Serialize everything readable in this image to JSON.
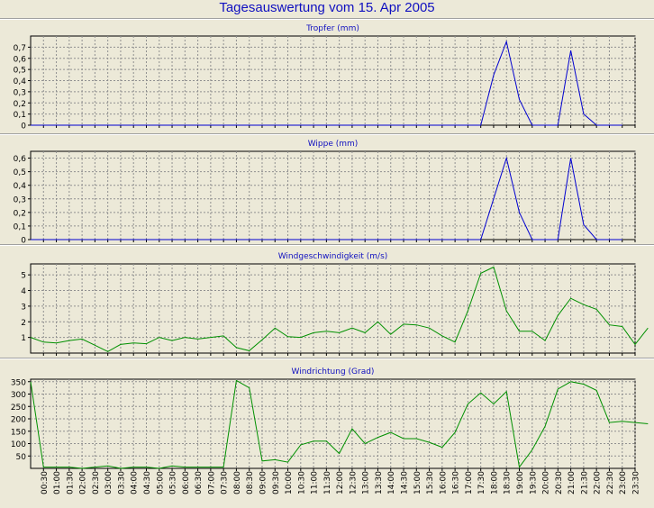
{
  "page": {
    "title": "Tagesauswertung vom 15. Apr 2005"
  },
  "colors": {
    "background": "#ece9d8",
    "grid": "#909090",
    "axis": "#000000",
    "title": "#1010c0"
  },
  "chart_data": [
    {
      "type": "line",
      "title": "Tropfer (mm)",
      "color": "#0000d0",
      "ylim": [
        0,
        0.8
      ],
      "yticks": [
        0,
        0.1,
        0.2,
        0.3,
        0.4,
        0.5,
        0.6,
        0.7
      ],
      "ytick_labels": [
        "0",
        "0,1",
        "0,2",
        "0,3",
        "0,4",
        "0,5",
        "0,6",
        "0,7"
      ],
      "points": [
        {
          "t": "00:00",
          "v": 0
        },
        {
          "t": "17:30",
          "v": 0
        },
        {
          "t": "18:00",
          "v": 0.45
        },
        {
          "t": "18:30",
          "v": 0.75
        },
        {
          "t": "19:00",
          "v": 0.23
        },
        {
          "t": "19:30",
          "v": 0
        },
        {
          "t": "20:30",
          "v": 0
        },
        {
          "t": "21:00",
          "v": 0.67
        },
        {
          "t": "21:30",
          "v": 0.1
        },
        {
          "t": "22:00",
          "v": 0
        },
        {
          "t": "23:00",
          "v": 0
        }
      ]
    },
    {
      "type": "line",
      "title": "Wippe (mm)",
      "color": "#0000d0",
      "ylim": [
        0,
        0.65
      ],
      "yticks": [
        0,
        0.1,
        0.2,
        0.3,
        0.4,
        0.5,
        0.6
      ],
      "ytick_labels": [
        "0",
        "0,1",
        "0,2",
        "0,3",
        "0,4",
        "0,5",
        "0,6"
      ],
      "points": [
        {
          "t": "00:00",
          "v": 0
        },
        {
          "t": "17:30",
          "v": 0
        },
        {
          "t": "18:30",
          "v": 0.6
        },
        {
          "t": "19:00",
          "v": 0.2
        },
        {
          "t": "19:30",
          "v": 0
        },
        {
          "t": "20:30",
          "v": 0
        },
        {
          "t": "21:00",
          "v": 0.6
        },
        {
          "t": "21:30",
          "v": 0.11
        },
        {
          "t": "22:00",
          "v": 0
        },
        {
          "t": "23:00",
          "v": 0
        }
      ]
    },
    {
      "type": "line",
      "title": "Windgeschwindigkeit (m/s)",
      "color": "#009000",
      "ylim": [
        0,
        5.7
      ],
      "yticks": [
        1,
        2,
        3,
        4,
        5
      ],
      "ytick_labels": [
        "1",
        "2",
        "3",
        "4",
        "5"
      ],
      "points": [
        {
          "t": "00:00",
          "v": 1.0
        },
        {
          "t": "00:30",
          "v": 0.7
        },
        {
          "t": "01:00",
          "v": 0.65
        },
        {
          "t": "01:30",
          "v": 0.8
        },
        {
          "t": "02:00",
          "v": 0.9
        },
        {
          "t": "02:30",
          "v": 0.5
        },
        {
          "t": "03:00",
          "v": 0.1
        },
        {
          "t": "03:30",
          "v": 0.55
        },
        {
          "t": "04:00",
          "v": 0.65
        },
        {
          "t": "04:30",
          "v": 0.6
        },
        {
          "t": "05:00",
          "v": 1.0
        },
        {
          "t": "05:30",
          "v": 0.8
        },
        {
          "t": "06:00",
          "v": 1.0
        },
        {
          "t": "06:30",
          "v": 0.9
        },
        {
          "t": "07:00",
          "v": 1.0
        },
        {
          "t": "07:30",
          "v": 1.1
        },
        {
          "t": "08:00",
          "v": 0.35
        },
        {
          "t": "08:30",
          "v": 0.15
        },
        {
          "t": "09:00",
          "v": 0.85
        },
        {
          "t": "09:30",
          "v": 1.6
        },
        {
          "t": "10:00",
          "v": 1.05
        },
        {
          "t": "10:30",
          "v": 1.0
        },
        {
          "t": "11:00",
          "v": 1.3
        },
        {
          "t": "11:30",
          "v": 1.4
        },
        {
          "t": "12:00",
          "v": 1.3
        },
        {
          "t": "12:30",
          "v": 1.6
        },
        {
          "t": "13:00",
          "v": 1.3
        },
        {
          "t": "13:30",
          "v": 2.0
        },
        {
          "t": "14:00",
          "v": 1.2
        },
        {
          "t": "14:30",
          "v": 1.85
        },
        {
          "t": "15:00",
          "v": 1.8
        },
        {
          "t": "15:30",
          "v": 1.6
        },
        {
          "t": "16:00",
          "v": 1.1
        },
        {
          "t": "16:30",
          "v": 0.7
        },
        {
          "t": "17:00",
          "v": 2.7
        },
        {
          "t": "17:30",
          "v": 5.1
        },
        {
          "t": "18:00",
          "v": 5.5
        },
        {
          "t": "18:30",
          "v": 2.7
        },
        {
          "t": "19:00",
          "v": 1.4
        },
        {
          "t": "19:30",
          "v": 1.4
        },
        {
          "t": "20:00",
          "v": 0.8
        },
        {
          "t": "20:30",
          "v": 2.4
        },
        {
          "t": "21:00",
          "v": 3.5
        },
        {
          "t": "21:30",
          "v": 3.1
        },
        {
          "t": "22:00",
          "v": 2.8
        },
        {
          "t": "22:30",
          "v": 1.8
        },
        {
          "t": "23:00",
          "v": 1.7
        },
        {
          "t": "23:30",
          "v": 0.55
        },
        {
          "t": "24:00",
          "v": 1.6
        }
      ]
    },
    {
      "type": "line",
      "title": "Windrichtung (Grad)",
      "color": "#009000",
      "ylim": [
        0,
        360
      ],
      "yticks": [
        50,
        100,
        150,
        200,
        250,
        300,
        350
      ],
      "ytick_labels": [
        "50",
        "100",
        "150",
        "200",
        "250",
        "300",
        "350"
      ],
      "points": [
        {
          "t": "00:00",
          "v": 350
        },
        {
          "t": "00:30",
          "v": 5
        },
        {
          "t": "01:00",
          "v": 5
        },
        {
          "t": "01:30",
          "v": 5
        },
        {
          "t": "02:00",
          "v": 0
        },
        {
          "t": "02:30",
          "v": 5
        },
        {
          "t": "03:00",
          "v": 10
        },
        {
          "t": "03:30",
          "v": 0
        },
        {
          "t": "04:00",
          "v": 5
        },
        {
          "t": "04:30",
          "v": 5
        },
        {
          "t": "05:00",
          "v": 0
        },
        {
          "t": "05:30",
          "v": 10
        },
        {
          "t": "06:00",
          "v": 5
        },
        {
          "t": "06:30",
          "v": 5
        },
        {
          "t": "07:00",
          "v": 5
        },
        {
          "t": "07:30",
          "v": 5
        },
        {
          "t": "08:00",
          "v": 355
        },
        {
          "t": "08:30",
          "v": 325
        },
        {
          "t": "09:00",
          "v": 30
        },
        {
          "t": "09:30",
          "v": 35
        },
        {
          "t": "10:00",
          "v": 25
        },
        {
          "t": "10:30",
          "v": 95
        },
        {
          "t": "11:00",
          "v": 110
        },
        {
          "t": "11:30",
          "v": 110
        },
        {
          "t": "12:00",
          "v": 60
        },
        {
          "t": "12:30",
          "v": 160
        },
        {
          "t": "13:00",
          "v": 100
        },
        {
          "t": "13:30",
          "v": 125
        },
        {
          "t": "14:00",
          "v": 145
        },
        {
          "t": "14:30",
          "v": 120
        },
        {
          "t": "15:00",
          "v": 120
        },
        {
          "t": "15:30",
          "v": 105
        },
        {
          "t": "16:00",
          "v": 85
        },
        {
          "t": "16:30",
          "v": 145
        },
        {
          "t": "17:00",
          "v": 260
        },
        {
          "t": "17:30",
          "v": 305
        },
        {
          "t": "18:00",
          "v": 260
        },
        {
          "t": "18:30",
          "v": 310
        },
        {
          "t": "19:00",
          "v": 5
        },
        {
          "t": "19:30",
          "v": 75
        },
        {
          "t": "20:00",
          "v": 170
        },
        {
          "t": "20:30",
          "v": 320
        },
        {
          "t": "21:00",
          "v": 350
        },
        {
          "t": "21:30",
          "v": 340
        },
        {
          "t": "22:00",
          "v": 315
        },
        {
          "t": "22:30",
          "v": 185
        },
        {
          "t": "23:00",
          "v": 190
        },
        {
          "t": "23:30",
          "v": 185
        },
        {
          "t": "24:00",
          "v": 180
        }
      ]
    }
  ],
  "xaxis": {
    "tick_labels": [
      "00:30",
      "01:00",
      "01:30",
      "02:00",
      "02:30",
      "03:00",
      "03:30",
      "04:00",
      "04:30",
      "05:00",
      "05:30",
      "06:00",
      "06:30",
      "07:00",
      "07:30",
      "08:00",
      "08:30",
      "09:00",
      "09:30",
      "10:00",
      "10:30",
      "11:00",
      "11:30",
      "12:00",
      "12:30",
      "13:00",
      "13:30",
      "14:00",
      "14:30",
      "15:00",
      "15:30",
      "16:00",
      "16:30",
      "17:00",
      "17:30",
      "18:00",
      "18:30",
      "19:00",
      "19:30",
      "20:00",
      "20:30",
      "21:00",
      "21:30",
      "22:00",
      "22:30",
      "23:00",
      "23:30"
    ]
  }
}
